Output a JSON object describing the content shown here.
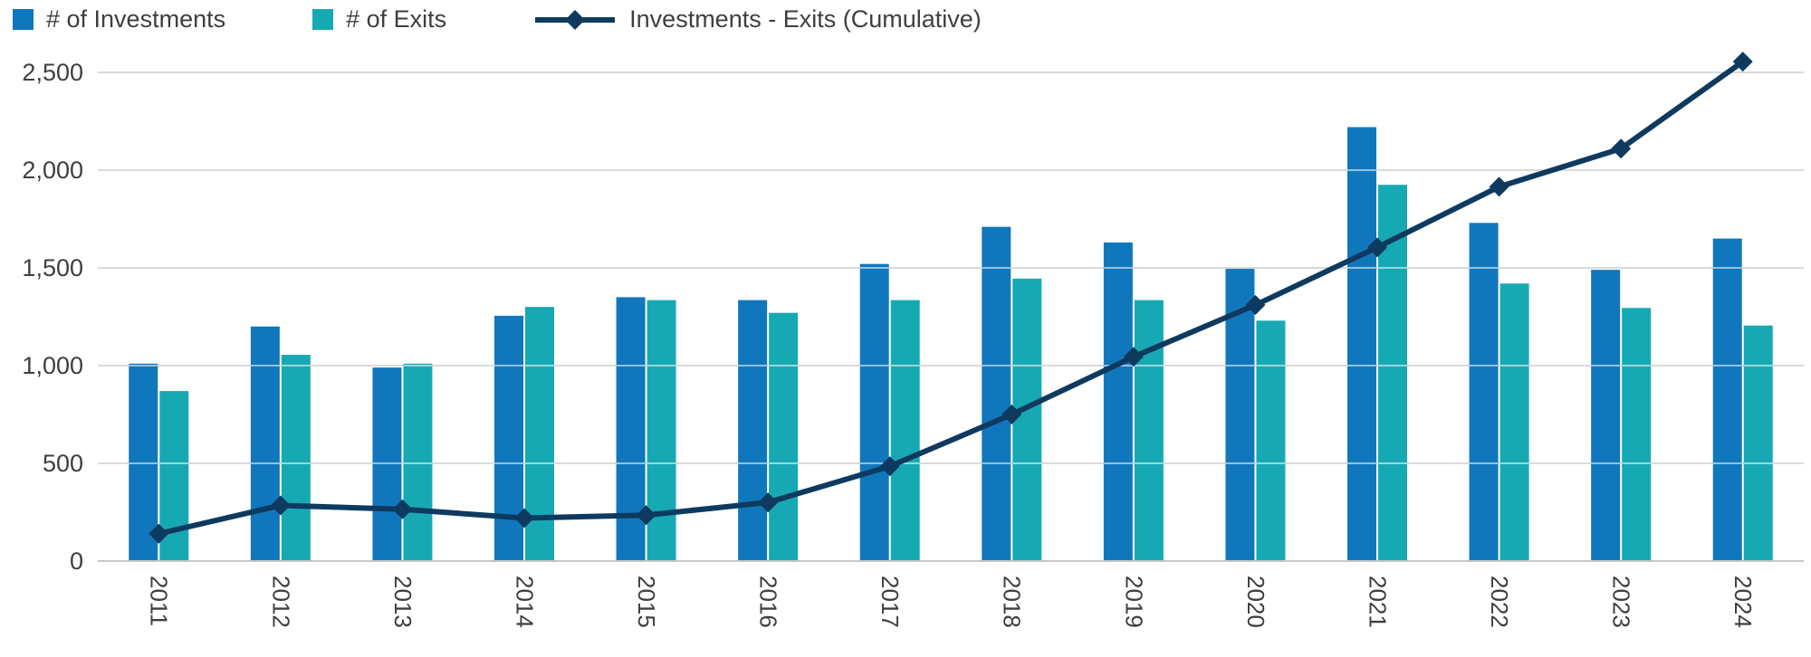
{
  "legend": {
    "investments_label": "# of Investments",
    "exits_label": "# of Exits",
    "cumulative_label": "Investments - Exits (Cumulative)"
  },
  "colors": {
    "investments": "#1177BD",
    "exits": "#17A9B3",
    "cumulative": "#0E3A5F",
    "grid": "#DADADA",
    "grid_over_bars": "rgba(255,255,255,0.55)",
    "axis_line": "#C6C6C6",
    "axis_text": "#3F3F3F",
    "background": "#FFFFFF"
  },
  "chart_data": {
    "type": "bar",
    "title": "",
    "xlabel": "",
    "ylabel": "",
    "categories": [
      "2011",
      "2012",
      "2013",
      "2014",
      "2015",
      "2016",
      "2017",
      "2018",
      "2019",
      "2020",
      "2021",
      "2022",
      "2023",
      "2024"
    ],
    "series": [
      {
        "name": "# of Investments",
        "type": "bar",
        "values": [
          1010,
          1200,
          990,
          1255,
          1350,
          1335,
          1520,
          1710,
          1630,
          1495,
          2220,
          1730,
          1490,
          1650
        ]
      },
      {
        "name": "# of Exits",
        "type": "bar",
        "values": [
          870,
          1055,
          1010,
          1300,
          1335,
          1270,
          1335,
          1445,
          1335,
          1230,
          1925,
          1420,
          1295,
          1205
        ]
      },
      {
        "name": "Investments - Exits (Cumulative)",
        "type": "line",
        "values": [
          140,
          285,
          265,
          220,
          235,
          300,
          485,
          750,
          1045,
          1310,
          1605,
          1915,
          2110,
          2555
        ]
      }
    ],
    "ylim": [
      0,
      2500
    ],
    "ytick_interval": 500,
    "ytick_labels": [
      "0",
      "500",
      "1,000",
      "1,500",
      "2,000",
      "2,500"
    ],
    "grid": true,
    "gridlines_drawn_over_bars": true,
    "legend_position": "top-left",
    "x_label_rotation": 90
  }
}
